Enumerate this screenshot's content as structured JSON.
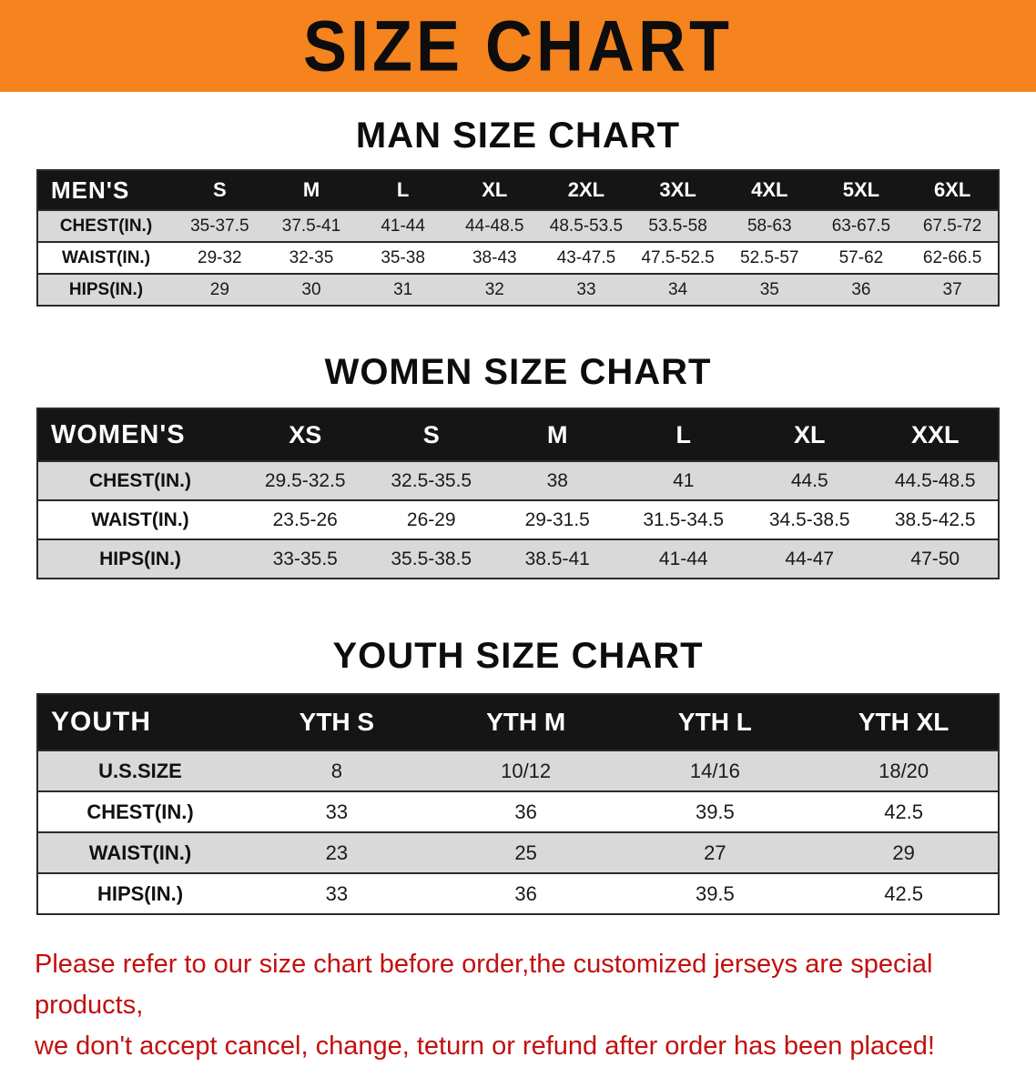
{
  "banner": {
    "title": "SIZE CHART"
  },
  "colors": {
    "banner_bg": "#f5831e",
    "table_header_bg": "#151515",
    "stripe_row": "#d9d9d9",
    "disclaimer_text": "#c21010"
  },
  "sections": {
    "men": {
      "heading": "MAN SIZE CHART",
      "header": [
        "MEN'S",
        "S",
        "M",
        "L",
        "XL",
        "2XL",
        "3XL",
        "4XL",
        "5XL",
        "6XL"
      ],
      "rows": [
        {
          "label": "CHEST(IN.)",
          "values": [
            "35-37.5",
            "37.5-41",
            "41-44",
            "44-48.5",
            "48.5-53.5",
            "53.5-58",
            "58-63",
            "63-67.5",
            "67.5-72"
          ]
        },
        {
          "label": "WAIST(IN.)",
          "values": [
            "29-32",
            "32-35",
            "35-38",
            "38-43",
            "43-47.5",
            "47.5-52.5",
            "52.5-57",
            "57-62",
            "62-66.5"
          ]
        },
        {
          "label": "HIPS(IN.)",
          "values": [
            "29",
            "30",
            "31",
            "32",
            "33",
            "34",
            "35",
            "36",
            "37"
          ]
        }
      ]
    },
    "women": {
      "heading": "WOMEN SIZE CHART",
      "header": [
        "WOMEN'S",
        "XS",
        "S",
        "M",
        "L",
        "XL",
        "XXL"
      ],
      "rows": [
        {
          "label": "CHEST(IN.)",
          "values": [
            "29.5-32.5",
            "32.5-35.5",
            "38",
            "41",
            "44.5",
            "44.5-48.5"
          ]
        },
        {
          "label": "WAIST(IN.)",
          "values": [
            "23.5-26",
            "26-29",
            "29-31.5",
            "31.5-34.5",
            "34.5-38.5",
            "38.5-42.5"
          ]
        },
        {
          "label": "HIPS(IN.)",
          "values": [
            "33-35.5",
            "35.5-38.5",
            "38.5-41",
            "41-44",
            "44-47",
            "47-50"
          ]
        }
      ]
    },
    "youth": {
      "heading": "YOUTH SIZE CHART",
      "header": [
        "YOUTH",
        "YTH S",
        "YTH M",
        "YTH L",
        "YTH XL"
      ],
      "rows": [
        {
          "label": "U.S.SIZE",
          "values": [
            "8",
            "10/12",
            "14/16",
            "18/20"
          ]
        },
        {
          "label": "CHEST(IN.)",
          "values": [
            "33",
            "36",
            "39.5",
            "42.5"
          ]
        },
        {
          "label": "WAIST(IN.)",
          "values": [
            "23",
            "25",
            "27",
            "29"
          ]
        },
        {
          "label": "HIPS(IN.)",
          "values": [
            "33",
            "36",
            "39.5",
            "42.5"
          ]
        }
      ]
    }
  },
  "disclaimer": {
    "line1": "Please refer to our size chart before order,the customized jerseys are special products,",
    "line2": "we don't accept cancel, change, teturn or refund after order has been placed!"
  }
}
